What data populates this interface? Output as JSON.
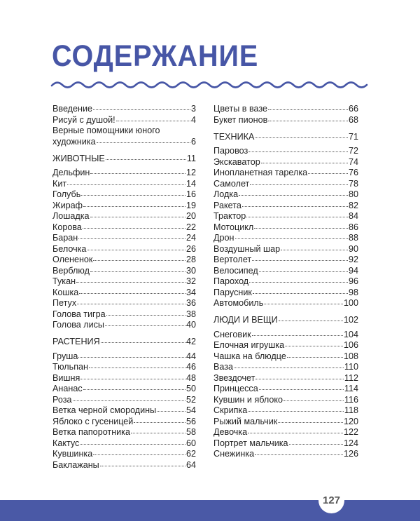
{
  "title": "СОДЕРЖАНИЕ",
  "accent_color": "#4756a6",
  "page_number": "127",
  "left_column": [
    {
      "group": [
        {
          "title": "Введение",
          "page": "3"
        },
        {
          "title": "Рисуй с душой!",
          "page": "4"
        },
        {
          "title_line1": "Верные помощники юного",
          "title": "художника",
          "page": "6"
        }
      ]
    },
    {
      "section": {
        "title": "ЖИВОТНЫЕ",
        "page": "11"
      },
      "group": [
        {
          "title": "Дельфин",
          "page": "12"
        },
        {
          "title": "Кит",
          "page": "14"
        },
        {
          "title": "Голубь",
          "page": "16"
        },
        {
          "title": "Жираф",
          "page": "19"
        },
        {
          "title": "Лошадка",
          "page": "20"
        },
        {
          "title": "Корова",
          "page": "22"
        },
        {
          "title": "Баран",
          "page": "24"
        },
        {
          "title": "Белочка",
          "page": "26"
        },
        {
          "title": "Олененок",
          "page": "28"
        },
        {
          "title": "Верблюд",
          "page": "30"
        },
        {
          "title": "Тукан",
          "page": "32"
        },
        {
          "title": "Кошка",
          "page": "34"
        },
        {
          "title": "Петух",
          "page": "36"
        },
        {
          "title": "Голова тигра",
          "page": "38"
        },
        {
          "title": "Голова лисы",
          "page": "40"
        }
      ]
    },
    {
      "section": {
        "title": "РАСТЕНИЯ",
        "page": "42"
      },
      "group": [
        {
          "title": "Груша",
          "page": "44"
        },
        {
          "title": "Тюльпан",
          "page": "46"
        },
        {
          "title": "Вишня",
          "page": "48"
        },
        {
          "title": "Ананас",
          "page": "50"
        },
        {
          "title": "Роза",
          "page": "52"
        },
        {
          "title": "Ветка черной смородины",
          "page": "54"
        },
        {
          "title": "Яблоко с гусеницей",
          "page": "56"
        },
        {
          "title": "Ветка папоротника",
          "page": "58"
        },
        {
          "title": "Кактус",
          "page": "60"
        },
        {
          "title": "Кувшинка",
          "page": "62"
        },
        {
          "title": "Баклажаны",
          "page": "64"
        }
      ]
    }
  ],
  "right_column": [
    {
      "group": [
        {
          "title": "Цветы в вазе",
          "page": "66"
        },
        {
          "title": "Букет пионов",
          "page": "68"
        }
      ]
    },
    {
      "section": {
        "title": "ТЕХНИКА",
        "page": "71"
      },
      "group": [
        {
          "title": "Паровоз",
          "page": "72"
        },
        {
          "title": "Экскаватор",
          "page": "74"
        },
        {
          "title": "Инопланетная тарелка",
          "page": "76"
        },
        {
          "title": "Самолет",
          "page": "78"
        },
        {
          "title": "Лодка",
          "page": "80"
        },
        {
          "title": "Ракета",
          "page": "82"
        },
        {
          "title": "Трактор",
          "page": "84"
        },
        {
          "title": "Мотоцикл",
          "page": "86"
        },
        {
          "title": "Дрон",
          "page": "88"
        },
        {
          "title": "Воздушный шар",
          "page": "90"
        },
        {
          "title": "Вертолет",
          "page": "92"
        },
        {
          "title": "Велосипед",
          "page": "94"
        },
        {
          "title": "Пароход",
          "page": "96"
        },
        {
          "title": "Парусник",
          "page": "98"
        },
        {
          "title": "Автомобиль",
          "page": "100"
        }
      ]
    },
    {
      "section": {
        "title": "ЛЮДИ И ВЕЩИ",
        "page": "102"
      },
      "group": [
        {
          "title": "Снеговик",
          "page": "104"
        },
        {
          "title": "Елочная игрушка",
          "page": "106"
        },
        {
          "title": "Чашка на блюдце",
          "page": "108"
        },
        {
          "title": "Ваза",
          "page": "110"
        },
        {
          "title": "Звездочет",
          "page": "112"
        },
        {
          "title": "Принцесса",
          "page": "114"
        },
        {
          "title": "Кувшин и яблоко",
          "page": "116"
        },
        {
          "title": "Скрипка",
          "page": "118"
        },
        {
          "title": "Рыжий мальчик",
          "page": "120"
        },
        {
          "title": "Девочка",
          "page": "122"
        },
        {
          "title": "Портрет мальчика",
          "page": "124"
        },
        {
          "title": "Снежинка",
          "page": "126"
        }
      ]
    }
  ]
}
